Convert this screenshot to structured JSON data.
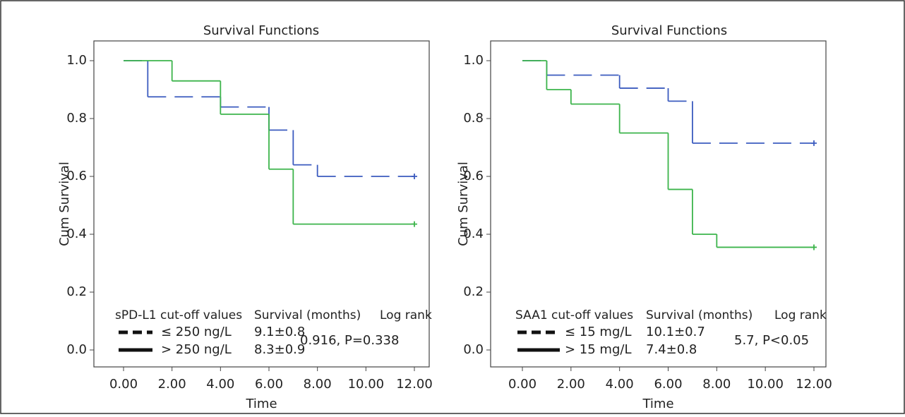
{
  "chart_data": [
    {
      "type": "line",
      "step": "post",
      "title": "Survival Functions",
      "x_label": "Time",
      "y_label": "Cum Survival",
      "xlim": [
        0,
        12
      ],
      "ylim": [
        0,
        1
      ],
      "xticks": [
        {
          "value": 0,
          "label": "0.00"
        },
        {
          "value": 2,
          "label": "2.00"
        },
        {
          "value": 4,
          "label": "4.00"
        },
        {
          "value": 6,
          "label": "6.00"
        },
        {
          "value": 8,
          "label": "8.00"
        },
        {
          "value": 10,
          "label": "10.00"
        },
        {
          "value": 12,
          "label": "12.00"
        }
      ],
      "yticks": [
        {
          "value": 0,
          "label": "0.0"
        },
        {
          "value": 0.2,
          "label": "0.2"
        },
        {
          "value": 0.4,
          "label": "0.4"
        },
        {
          "value": 0.6,
          "label": "0.6"
        },
        {
          "value": 0.8,
          "label": "0.8"
        },
        {
          "value": 1,
          "label": "1.0"
        }
      ],
      "legend_title": "sPD-L1 cut-off values",
      "survival_header": "Survival (months)",
      "log_rank_header": "Log rank",
      "log_rank": "0.916, P=0.338",
      "series": [
        {
          "name": "≤ 250 ng/L",
          "survival": "9.1±0.8",
          "color": "#3b5bbf",
          "style": "dashed",
          "x": [
            0,
            1,
            4,
            6,
            7,
            8,
            12
          ],
          "values": [
            1.0,
            0.875,
            0.84,
            0.76,
            0.64,
            0.6,
            0.6
          ]
        },
        {
          "name": "> 250 ng/L",
          "survival": "8.3±0.9",
          "color": "#3cb44b",
          "style": "solid",
          "x": [
            0,
            2,
            4,
            6,
            7,
            12
          ],
          "values": [
            1.0,
            0.93,
            0.815,
            0.625,
            0.435,
            0.435
          ]
        }
      ]
    },
    {
      "type": "line",
      "step": "post",
      "title": "Survival Functions",
      "x_label": "Time",
      "y_label": "Cum Survival",
      "xlim": [
        0,
        12
      ],
      "ylim": [
        0,
        1
      ],
      "xticks": [
        {
          "value": 0,
          "label": "0.00"
        },
        {
          "value": 2,
          "label": "2.00"
        },
        {
          "value": 4,
          "label": "4.00"
        },
        {
          "value": 6,
          "label": "6.00"
        },
        {
          "value": 8,
          "label": "8.00"
        },
        {
          "value": 10,
          "label": "10.00"
        },
        {
          "value": 12,
          "label": "12.00"
        }
      ],
      "yticks": [
        {
          "value": 0,
          "label": "0.0"
        },
        {
          "value": 0.2,
          "label": "0.2"
        },
        {
          "value": 0.4,
          "label": "0.4"
        },
        {
          "value": 0.6,
          "label": "0.6"
        },
        {
          "value": 0.8,
          "label": "0.8"
        },
        {
          "value": 1,
          "label": "1.0"
        }
      ],
      "legend_title": "SAA1 cut-off values",
      "survival_header": "Survival (months)",
      "log_rank_header": "Log rank",
      "log_rank": "5.7, P<0.05",
      "series": [
        {
          "name": "≤ 15 mg/L",
          "survival": "10.1±0.7",
          "color": "#3b5bbf",
          "style": "dashed",
          "x": [
            0,
            1,
            4,
            6,
            7,
            12
          ],
          "values": [
            1.0,
            0.95,
            0.905,
            0.86,
            0.715,
            0.715
          ]
        },
        {
          "name": "> 15 mg/L",
          "survival": "7.4±0.8",
          "color": "#3cb44b",
          "style": "solid",
          "x": [
            0,
            1,
            2,
            4,
            6,
            7,
            8,
            12
          ],
          "values": [
            1.0,
            0.9,
            0.85,
            0.75,
            0.555,
            0.4,
            0.355,
            0.355
          ]
        }
      ]
    }
  ]
}
